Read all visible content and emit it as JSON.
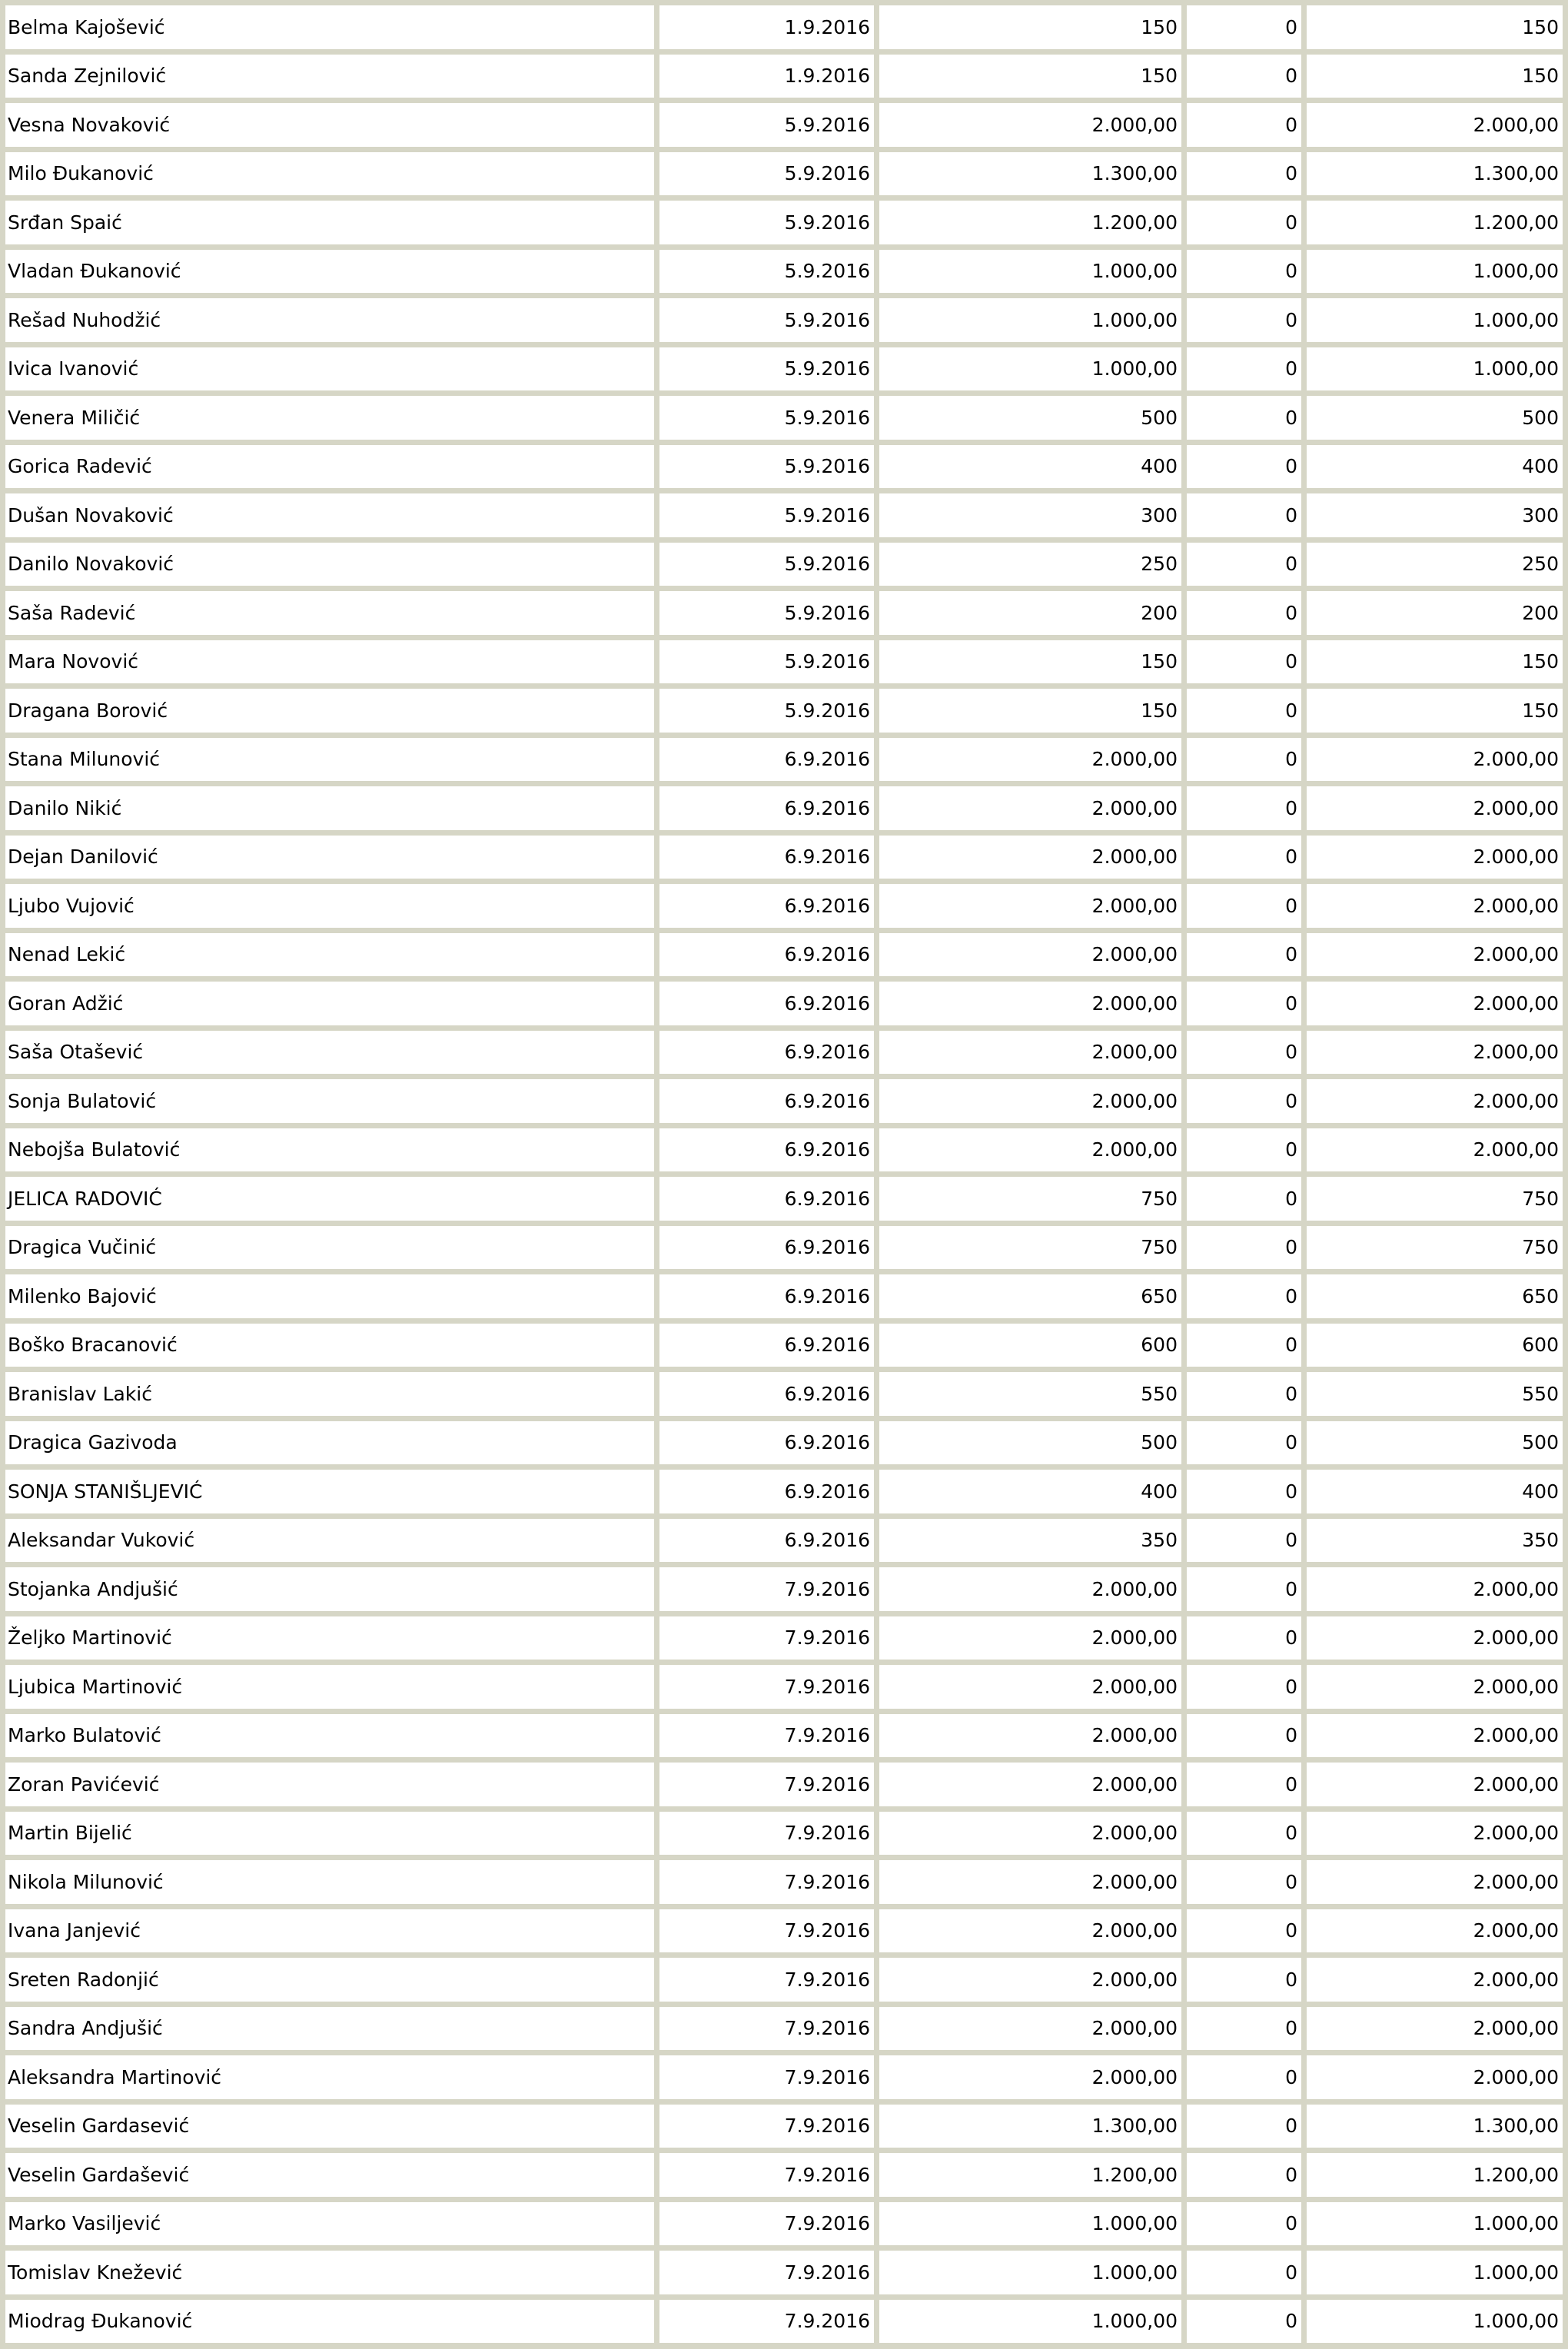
{
  "colors": {
    "border": "#d6d6c6",
    "cell": "#ffffff",
    "text": "#000000"
  },
  "rows": [
    [
      "Belma Kajošević",
      "1.9.2016",
      "150",
      "0",
      "150"
    ],
    [
      "Sanda Zejnilović",
      "1.9.2016",
      "150",
      "0",
      "150"
    ],
    [
      "Vesna Novaković",
      "5.9.2016",
      "2.000,00",
      "0",
      "2.000,00"
    ],
    [
      "Milo Đukanović",
      "5.9.2016",
      "1.300,00",
      "0",
      "1.300,00"
    ],
    [
      "Srđan Spaić",
      "5.9.2016",
      "1.200,00",
      "0",
      "1.200,00"
    ],
    [
      "Vladan Đukanović",
      "5.9.2016",
      "1.000,00",
      "0",
      "1.000,00"
    ],
    [
      "Rešad Nuhodžić",
      "5.9.2016",
      "1.000,00",
      "0",
      "1.000,00"
    ],
    [
      "Ivica Ivanović",
      "5.9.2016",
      "1.000,00",
      "0",
      "1.000,00"
    ],
    [
      "Venera Miličić",
      "5.9.2016",
      "500",
      "0",
      "500"
    ],
    [
      "Gorica Radević",
      "5.9.2016",
      "400",
      "0",
      "400"
    ],
    [
      "Dušan Novaković",
      "5.9.2016",
      "300",
      "0",
      "300"
    ],
    [
      "Danilo Novaković",
      "5.9.2016",
      "250",
      "0",
      "250"
    ],
    [
      "Saša Radević",
      "5.9.2016",
      "200",
      "0",
      "200"
    ],
    [
      "Mara Novović",
      "5.9.2016",
      "150",
      "0",
      "150"
    ],
    [
      "Dragana Borović",
      "5.9.2016",
      "150",
      "0",
      "150"
    ],
    [
      "Stana Milunović",
      "6.9.2016",
      "2.000,00",
      "0",
      "2.000,00"
    ],
    [
      "Danilo Nikić",
      "6.9.2016",
      "2.000,00",
      "0",
      "2.000,00"
    ],
    [
      "Dejan Danilović",
      "6.9.2016",
      "2.000,00",
      "0",
      "2.000,00"
    ],
    [
      "Ljubo Vujović",
      "6.9.2016",
      "2.000,00",
      "0",
      "2.000,00"
    ],
    [
      "Nenad Lekić",
      "6.9.2016",
      "2.000,00",
      "0",
      "2.000,00"
    ],
    [
      "Goran Adžić",
      "6.9.2016",
      "2.000,00",
      "0",
      "2.000,00"
    ],
    [
      "Saša Otašević",
      "6.9.2016",
      "2.000,00",
      "0",
      "2.000,00"
    ],
    [
      "Sonja Bulatović",
      "6.9.2016",
      "2.000,00",
      "0",
      "2.000,00"
    ],
    [
      "Nebojša Bulatović",
      "6.9.2016",
      "2.000,00",
      "0",
      "2.000,00"
    ],
    [
      "JELICA RADOVIĆ",
      "6.9.2016",
      "750",
      "0",
      "750"
    ],
    [
      "Dragica Vučinić",
      "6.9.2016",
      "750",
      "0",
      "750"
    ],
    [
      "Milenko Bajović",
      "6.9.2016",
      "650",
      "0",
      "650"
    ],
    [
      "Boško Bracanović",
      "6.9.2016",
      "600",
      "0",
      "600"
    ],
    [
      "Branislav Lakić",
      "6.9.2016",
      "550",
      "0",
      "550"
    ],
    [
      "Dragica Gazivoda",
      "6.9.2016",
      "500",
      "0",
      "500"
    ],
    [
      "SONJA STANIŠLJEVIĆ",
      "6.9.2016",
      "400",
      "0",
      "400"
    ],
    [
      "Aleksandar Vuković",
      "6.9.2016",
      "350",
      "0",
      "350"
    ],
    [
      "Stojanka Andjušić",
      "7.9.2016",
      "2.000,00",
      "0",
      "2.000,00"
    ],
    [
      "Željko Martinović",
      "7.9.2016",
      "2.000,00",
      "0",
      "2.000,00"
    ],
    [
      "Ljubica Martinović",
      "7.9.2016",
      "2.000,00",
      "0",
      "2.000,00"
    ],
    [
      "Marko Bulatović",
      "7.9.2016",
      "2.000,00",
      "0",
      "2.000,00"
    ],
    [
      "Zoran Pavićević",
      "7.9.2016",
      "2.000,00",
      "0",
      "2.000,00"
    ],
    [
      "Martin Bijelić",
      "7.9.2016",
      "2.000,00",
      "0",
      "2.000,00"
    ],
    [
      "Nikola Milunović",
      "7.9.2016",
      "2.000,00",
      "0",
      "2.000,00"
    ],
    [
      "Ivana Janjević",
      "7.9.2016",
      "2.000,00",
      "0",
      "2.000,00"
    ],
    [
      "Sreten Radonjić",
      "7.9.2016",
      "2.000,00",
      "0",
      "2.000,00"
    ],
    [
      "Sandra Andjušić",
      "7.9.2016",
      "2.000,00",
      "0",
      "2.000,00"
    ],
    [
      "Aleksandra Martinović",
      "7.9.2016",
      "2.000,00",
      "0",
      "2.000,00"
    ],
    [
      "Veselin Gardasević",
      "7.9.2016",
      "1.300,00",
      "0",
      "1.300,00"
    ],
    [
      "Veselin Gardašević",
      "7.9.2016",
      "1.200,00",
      "0",
      "1.200,00"
    ],
    [
      "Marko Vasiljević",
      "7.9.2016",
      "1.000,00",
      "0",
      "1.000,00"
    ],
    [
      "Tomislav Knežević",
      "7.9.2016",
      "1.000,00",
      "0",
      "1.000,00"
    ],
    [
      "Miodrag Đukanović",
      "7.9.2016",
      "1.000,00",
      "0",
      "1.000,00"
    ]
  ]
}
